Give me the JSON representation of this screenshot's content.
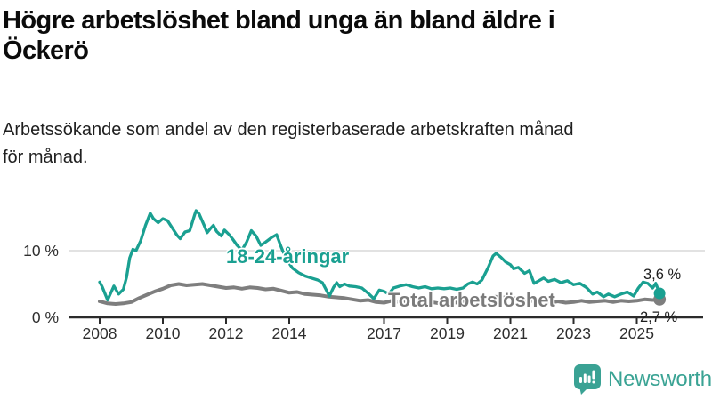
{
  "header": {
    "title_line1": "Högre arbetslöshet bland unga än bland äldre i",
    "title_line2": "Öckerö",
    "subtitle_line1": "Arbetssökande som andel av den registerbaserade arbetskraften månad",
    "subtitle_line2": "för månad."
  },
  "chart_data": {
    "type": "line",
    "title": "Högre arbetslöshet bland unga än bland äldre i Öckerö",
    "subtitle": "Arbetssökande som andel av den registerbaserade arbetskraften månad för månad.",
    "unit": "%",
    "grid": "horizontal gridline at 10% only",
    "legend_position": "inline labels on lines",
    "xlim": [
      2008,
      2025.75
    ],
    "ylim": [
      0,
      16.5
    ],
    "x_ticks": [
      2008,
      2010,
      2012,
      2014,
      2017,
      2019,
      2021,
      2023,
      2025
    ],
    "y_ticks": [
      {
        "value": 0,
        "label": "0 %"
      },
      {
        "value": 10,
        "label": "10 %"
      }
    ],
    "series": [
      {
        "name": "18-24-åringar",
        "color": "#1aa091",
        "end_label": "3,6 %",
        "last_value": 3.6,
        "points": [
          [
            2008.0,
            5.3
          ],
          [
            2008.08,
            4.6
          ],
          [
            2008.25,
            2.6
          ],
          [
            2008.45,
            4.7
          ],
          [
            2008.6,
            3.5
          ],
          [
            2008.75,
            4.2
          ],
          [
            2008.85,
            6.0
          ],
          [
            2008.95,
            8.9
          ],
          [
            2009.05,
            10.2
          ],
          [
            2009.15,
            10.0
          ],
          [
            2009.3,
            11.5
          ],
          [
            2009.45,
            13.8
          ],
          [
            2009.6,
            15.6
          ],
          [
            2009.7,
            14.8
          ],
          [
            2009.85,
            14.2
          ],
          [
            2010.0,
            14.8
          ],
          [
            2010.15,
            14.5
          ],
          [
            2010.3,
            13.4
          ],
          [
            2010.45,
            12.3
          ],
          [
            2010.55,
            11.8
          ],
          [
            2010.7,
            12.8
          ],
          [
            2010.85,
            13.0
          ],
          [
            2011.0,
            15.3
          ],
          [
            2011.05,
            16.0
          ],
          [
            2011.15,
            15.5
          ],
          [
            2011.3,
            13.9
          ],
          [
            2011.4,
            12.7
          ],
          [
            2011.5,
            13.3
          ],
          [
            2011.6,
            13.8
          ],
          [
            2011.7,
            12.9
          ],
          [
            2011.85,
            12.2
          ],
          [
            2011.95,
            13.1
          ],
          [
            2012.1,
            12.4
          ],
          [
            2012.2,
            11.8
          ],
          [
            2012.35,
            10.8
          ],
          [
            2012.5,
            10.1
          ],
          [
            2012.65,
            11.3
          ],
          [
            2012.8,
            13.0
          ],
          [
            2012.95,
            12.2
          ],
          [
            2013.1,
            10.8
          ],
          [
            2013.25,
            11.3
          ],
          [
            2013.45,
            12.0
          ],
          [
            2013.6,
            12.4
          ],
          [
            2013.75,
            10.5
          ],
          [
            2013.9,
            8.8
          ],
          [
            2014.1,
            7.4
          ],
          [
            2014.3,
            6.7
          ],
          [
            2014.5,
            6.2
          ],
          [
            2014.7,
            5.9
          ],
          [
            2014.9,
            5.6
          ],
          [
            2015.05,
            5.2
          ],
          [
            2015.27,
            3.2
          ],
          [
            2015.4,
            4.5
          ],
          [
            2015.5,
            5.2
          ],
          [
            2015.6,
            4.6
          ],
          [
            2015.75,
            5.0
          ],
          [
            2015.9,
            4.7
          ],
          [
            2016.1,
            4.6
          ],
          [
            2016.3,
            4.4
          ],
          [
            2016.5,
            3.6
          ],
          [
            2016.68,
            2.8
          ],
          [
            2016.85,
            4.1
          ],
          [
            2017.0,
            3.9
          ],
          [
            2017.15,
            3.5
          ],
          [
            2017.3,
            4.4
          ],
          [
            2017.5,
            4.7
          ],
          [
            2017.7,
            4.9
          ],
          [
            2017.9,
            4.6
          ],
          [
            2018.1,
            4.4
          ],
          [
            2018.3,
            4.6
          ],
          [
            2018.5,
            4.3
          ],
          [
            2018.7,
            4.4
          ],
          [
            2018.9,
            4.3
          ],
          [
            2019.1,
            4.4
          ],
          [
            2019.3,
            4.2
          ],
          [
            2019.5,
            4.4
          ],
          [
            2019.65,
            5.0
          ],
          [
            2019.8,
            5.3
          ],
          [
            2019.95,
            5.0
          ],
          [
            2020.1,
            5.6
          ],
          [
            2020.3,
            7.5
          ],
          [
            2020.45,
            9.2
          ],
          [
            2020.55,
            9.6
          ],
          [
            2020.7,
            9.0
          ],
          [
            2020.85,
            8.3
          ],
          [
            2021.0,
            7.9
          ],
          [
            2021.1,
            7.3
          ],
          [
            2021.25,
            7.5
          ],
          [
            2021.45,
            6.6
          ],
          [
            2021.6,
            7.0
          ],
          [
            2021.75,
            5.1
          ],
          [
            2021.9,
            5.5
          ],
          [
            2022.05,
            5.9
          ],
          [
            2022.2,
            5.4
          ],
          [
            2022.4,
            5.7
          ],
          [
            2022.6,
            5.2
          ],
          [
            2022.8,
            5.5
          ],
          [
            2023.0,
            4.9
          ],
          [
            2023.2,
            5.1
          ],
          [
            2023.4,
            4.5
          ],
          [
            2023.6,
            3.5
          ],
          [
            2023.75,
            3.8
          ],
          [
            2023.95,
            3.1
          ],
          [
            2024.1,
            3.5
          ],
          [
            2024.3,
            3.1
          ],
          [
            2024.5,
            3.5
          ],
          [
            2024.7,
            3.8
          ],
          [
            2024.9,
            3.2
          ],
          [
            2025.05,
            4.4
          ],
          [
            2025.2,
            5.3
          ],
          [
            2025.35,
            5.1
          ],
          [
            2025.5,
            4.4
          ],
          [
            2025.6,
            5.1
          ],
          [
            2025.72,
            3.6
          ]
        ]
      },
      {
        "name": "Total arbetslöshet",
        "color": "#7e7e7e",
        "end_label": "2,7 %",
        "last_value": 2.7,
        "points": [
          [
            2008.0,
            2.4
          ],
          [
            2008.25,
            2.1
          ],
          [
            2008.5,
            2.0
          ],
          [
            2008.75,
            2.1
          ],
          [
            2009.0,
            2.3
          ],
          [
            2009.25,
            2.9
          ],
          [
            2009.5,
            3.4
          ],
          [
            2009.75,
            3.9
          ],
          [
            2010.0,
            4.3
          ],
          [
            2010.25,
            4.8
          ],
          [
            2010.5,
            5.0
          ],
          [
            2010.75,
            4.8
          ],
          [
            2011.0,
            4.9
          ],
          [
            2011.25,
            5.0
          ],
          [
            2011.5,
            4.8
          ],
          [
            2011.75,
            4.6
          ],
          [
            2012.0,
            4.4
          ],
          [
            2012.25,
            4.5
          ],
          [
            2012.5,
            4.3
          ],
          [
            2012.75,
            4.5
          ],
          [
            2013.0,
            4.4
          ],
          [
            2013.25,
            4.2
          ],
          [
            2013.5,
            4.3
          ],
          [
            2013.75,
            4.0
          ],
          [
            2014.0,
            3.7
          ],
          [
            2014.25,
            3.8
          ],
          [
            2014.5,
            3.5
          ],
          [
            2014.75,
            3.4
          ],
          [
            2015.0,
            3.3
          ],
          [
            2015.25,
            3.1
          ],
          [
            2015.5,
            3.0
          ],
          [
            2015.75,
            2.9
          ],
          [
            2016.0,
            2.7
          ],
          [
            2016.25,
            2.5
          ],
          [
            2016.5,
            2.6
          ],
          [
            2016.75,
            2.3
          ],
          [
            2017.0,
            2.2
          ],
          [
            2017.25,
            2.5
          ],
          [
            2017.5,
            2.3
          ],
          [
            2017.75,
            2.2
          ],
          [
            2018.0,
            2.4
          ],
          [
            2018.25,
            2.2
          ],
          [
            2018.5,
            2.3
          ],
          [
            2018.75,
            2.1
          ],
          [
            2019.0,
            2.3
          ],
          [
            2019.25,
            2.2
          ],
          [
            2019.5,
            2.3
          ],
          [
            2019.75,
            2.4
          ],
          [
            2020.0,
            2.5
          ],
          [
            2020.25,
            2.9
          ],
          [
            2020.5,
            3.1
          ],
          [
            2020.75,
            3.0
          ],
          [
            2021.0,
            2.9
          ],
          [
            2021.25,
            2.8
          ],
          [
            2021.5,
            2.6
          ],
          [
            2021.75,
            2.4
          ],
          [
            2022.0,
            2.3
          ],
          [
            2022.25,
            2.2
          ],
          [
            2022.5,
            2.4
          ],
          [
            2022.75,
            2.2
          ],
          [
            2023.0,
            2.3
          ],
          [
            2023.25,
            2.5
          ],
          [
            2023.5,
            2.3
          ],
          [
            2023.75,
            2.4
          ],
          [
            2024.0,
            2.5
          ],
          [
            2024.25,
            2.3
          ],
          [
            2024.5,
            2.5
          ],
          [
            2024.75,
            2.4
          ],
          [
            2025.0,
            2.5
          ],
          [
            2025.25,
            2.7
          ],
          [
            2025.5,
            2.6
          ],
          [
            2025.72,
            2.7
          ]
        ]
      }
    ]
  },
  "footer": {
    "brand": "Newsworthy",
    "brand_color": "#3aa394",
    "icon": "newsworthy-chart-bubble-icon"
  },
  "colors": {
    "young_line": "#1aa091",
    "total_line": "#7e7e7e",
    "gridline": "#d8d8d8",
    "axis": "#2b2b2b",
    "text": "#1f1f1f"
  }
}
